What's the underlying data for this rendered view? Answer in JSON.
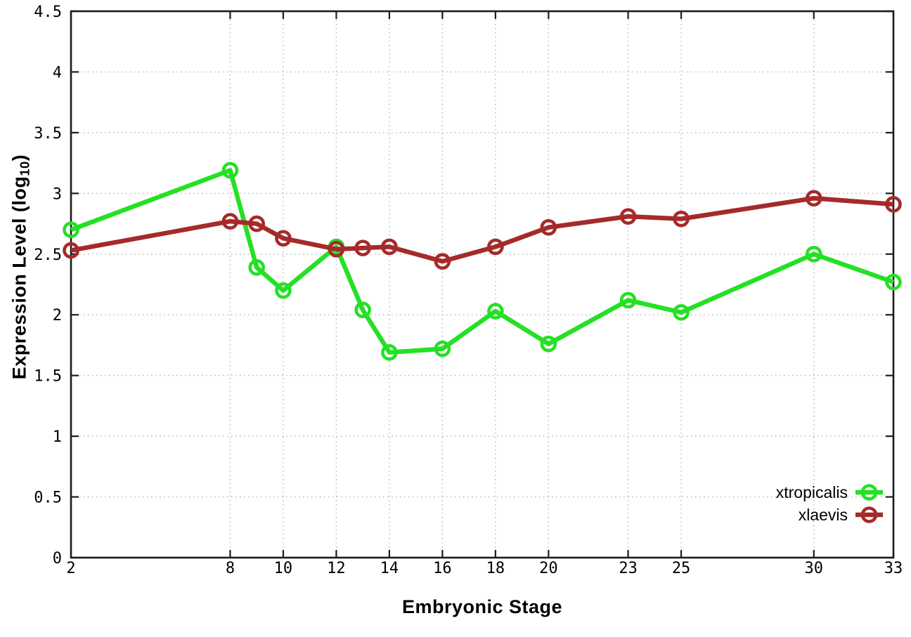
{
  "chart_data": {
    "type": "line",
    "title": "",
    "xlabel": "Embryonic Stage",
    "ylabel": "Expression Level (log10)",
    "ylabel_parts": {
      "main": "Expression Level (log",
      "sub": "10",
      "close": ")"
    },
    "xlim": [
      2,
      33
    ],
    "ylim": [
      0,
      4.5
    ],
    "x_ticks": [
      2,
      8,
      10,
      12,
      14,
      16,
      18,
      20,
      23,
      25,
      30,
      33
    ],
    "x_tick_labels": [
      "2",
      "8",
      "10",
      "12",
      "14",
      "16",
      "18",
      "20",
      "23",
      "25",
      "30",
      "33"
    ],
    "y_ticks": [
      0,
      0.5,
      1,
      1.5,
      2,
      2.5,
      3,
      3.5,
      4,
      4.5
    ],
    "y_tick_labels": [
      "0",
      "0.5",
      "1",
      "1.5",
      "2",
      "2.5",
      "3",
      "3.5",
      "4",
      "4.5"
    ],
    "grid": true,
    "legend_position": "inside bottom-right",
    "marker": "open-circle",
    "x": [
      2,
      8,
      9,
      10,
      12,
      13,
      14,
      16,
      18,
      20,
      23,
      25,
      30,
      33
    ],
    "series": [
      {
        "name": "xtropicalis",
        "color": "#25e025",
        "values": [
          2.7,
          3.19,
          2.39,
          2.2,
          2.56,
          2.04,
          1.69,
          1.72,
          2.03,
          1.76,
          2.12,
          2.02,
          2.5,
          2.27
        ]
      },
      {
        "name": "xlaevis",
        "color": "#a52a2a",
        "values": [
          2.53,
          2.77,
          2.75,
          2.63,
          2.54,
          2.55,
          2.56,
          2.44,
          2.56,
          2.72,
          2.81,
          2.79,
          2.96,
          2.91
        ]
      }
    ]
  }
}
